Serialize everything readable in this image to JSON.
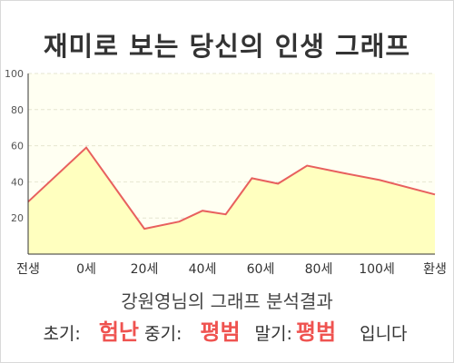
{
  "title": "재미로 보는 당신의 인생 그래프",
  "chart_data": {
    "type": "area",
    "x_tick_labels": [
      "전생",
      "0세",
      "20세",
      "40세",
      "60세",
      "80세",
      "100세",
      "환생"
    ],
    "x_tick_positions": [
      -20,
      0,
      20,
      40,
      60,
      80,
      100,
      120
    ],
    "y_ticks": [
      20,
      40,
      60,
      80,
      100
    ],
    "ylim": [
      0,
      100
    ],
    "xlim": [
      -20,
      120
    ],
    "grid": true,
    "series": [
      {
        "x": [
          -20,
          0,
          20,
          32,
          40,
          48,
          57,
          66,
          76,
          88,
          101,
          120
        ],
        "values": [
          29,
          59,
          14,
          18,
          24,
          22,
          42,
          39,
          49,
          45,
          41,
          33
        ]
      }
    ]
  },
  "colors": {
    "line": "#e8605e",
    "fill": "#ffffbf",
    "plot_bg": "#fffff2",
    "accent": "#ef5350",
    "grid": "#e6e6d0"
  },
  "subtitle": "강원영님의 그래프 분석결과",
  "stages": {
    "early_label": "초기:",
    "early_value": "험난",
    "mid_label": "중기:",
    "mid_value": "평범",
    "late_label": "말기:",
    "late_value": "평범",
    "suffix": "입니다"
  }
}
